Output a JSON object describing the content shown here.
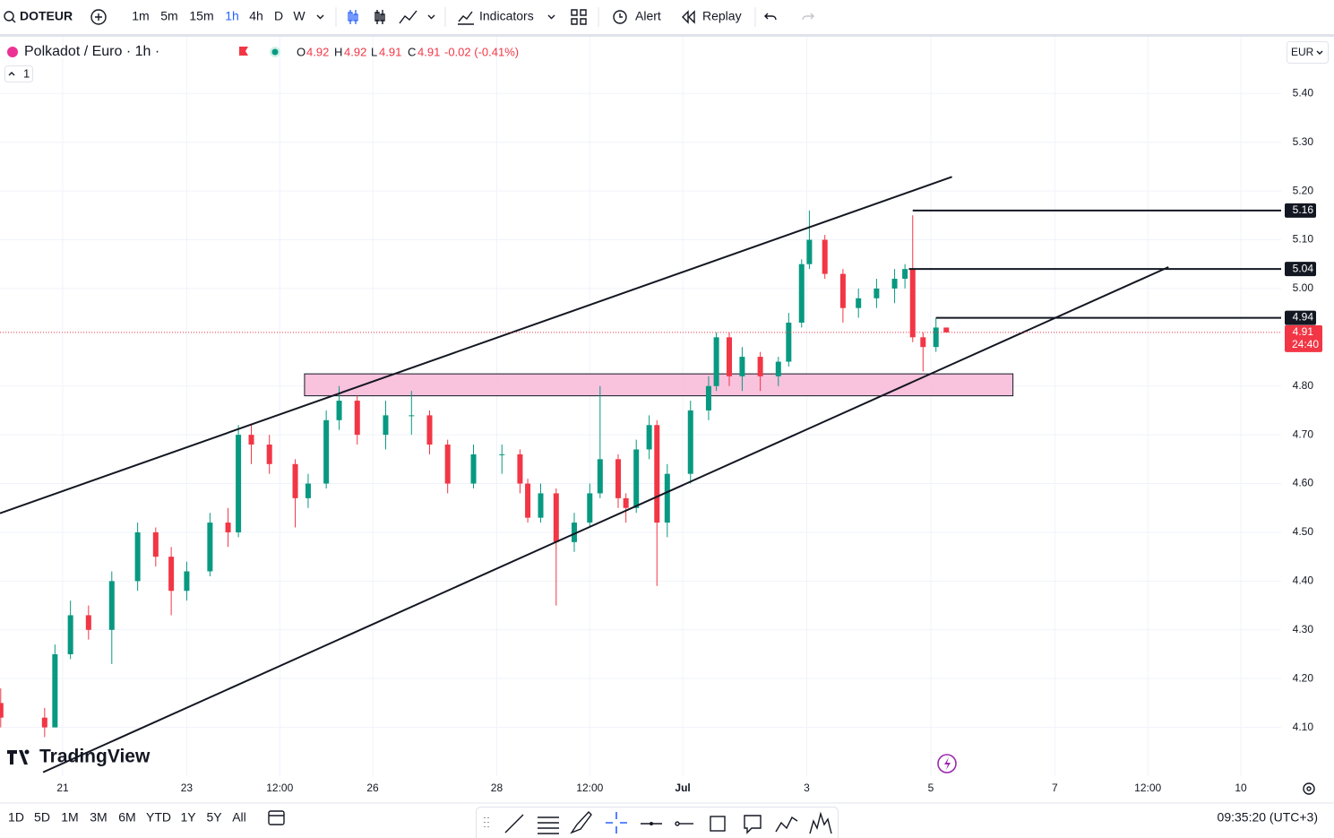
{
  "toolbar": {
    "symbol": "DOTEUR",
    "intervals": [
      "1m",
      "5m",
      "15m",
      "1h",
      "4h",
      "D",
      "W"
    ],
    "indicators": "Indicators",
    "alert": "Alert",
    "replay": "Replay"
  },
  "legend": {
    "title": "Polkadot / Euro · 1h ·",
    "o_label": "O",
    "open": 4.92,
    "h_label": "H",
    "high": 4.92,
    "l_label": "L",
    "low": 4.91,
    "c_label": "C",
    "close": 4.91,
    "change": "-0.02 (-0.41%)",
    "indicator_count": "1",
    "currency": "EUR"
  },
  "chart_data": {
    "type": "candlestick",
    "up_color": "#089981",
    "down_color": "#f23645",
    "grid": true,
    "ylim": [
      4.0,
      5.52
    ],
    "yticks": [
      {
        "value": 4.1,
        "label": "4.10"
      },
      {
        "value": 4.2,
        "label": "4.20"
      },
      {
        "value": 4.3,
        "label": "4.30"
      },
      {
        "value": 4.4,
        "label": "4.40"
      },
      {
        "value": 4.5,
        "label": "4.50"
      },
      {
        "value": 4.6,
        "label": "4.60"
      },
      {
        "value": 4.7,
        "label": "4.70"
      },
      {
        "value": 4.8,
        "label": "4.80"
      },
      {
        "value": 5.0,
        "label": "5.00"
      },
      {
        "value": 5.1,
        "label": "5.10"
      },
      {
        "value": 5.2,
        "label": "5.20"
      },
      {
        "value": 5.3,
        "label": "5.30"
      },
      {
        "value": 5.4,
        "label": "5.40"
      }
    ],
    "xlim": [
      -24.3,
      471
    ],
    "xticks": [
      {
        "value": 0,
        "label": "21"
      },
      {
        "value": 48,
        "label": "23"
      },
      {
        "value": 84,
        "label": "12:00"
      },
      {
        "value": 120,
        "label": "26"
      },
      {
        "value": 168,
        "label": "28"
      },
      {
        "value": 204,
        "label": "12:00"
      },
      {
        "value": 240,
        "label": "Jul"
      },
      {
        "value": 288,
        "label": "3"
      },
      {
        "value": 336,
        "label": "5"
      },
      {
        "value": 384,
        "label": "7"
      },
      {
        "value": 420,
        "label": "12:00"
      },
      {
        "value": 456,
        "label": "10"
      }
    ],
    "x": [
      -24,
      -7,
      -3,
      3,
      10,
      19,
      29,
      36,
      42,
      48,
      57,
      64,
      68,
      73,
      80,
      90,
      95,
      102,
      107,
      114,
      125,
      135,
      142,
      149,
      159,
      170,
      177,
      180,
      185,
      191,
      198,
      204,
      208,
      215,
      218,
      222,
      227,
      230,
      234,
      243,
      250,
      253,
      258,
      263,
      270,
      277,
      281,
      286,
      289,
      295,
      302,
      308,
      315,
      322,
      326,
      329,
      333,
      338,
      342
    ],
    "open": [
      4.15,
      4.12,
      4.1,
      4.25,
      4.33,
      4.3,
      4.4,
      4.5,
      4.45,
      4.38,
      4.42,
      4.52,
      4.5,
      4.7,
      4.68,
      4.64,
      4.57,
      4.6,
      4.73,
      4.77,
      4.7,
      4.74,
      4.74,
      4.68,
      4.6,
      4.66,
      4.66,
      4.6,
      4.53,
      4.58,
      4.48,
      4.52,
      4.58,
      4.65,
      4.57,
      4.55,
      4.67,
      4.72,
      4.52,
      4.62,
      4.75,
      4.8,
      4.9,
      4.82,
      4.86,
      4.82,
      4.85,
      4.93,
      5.05,
      5.1,
      5.03,
      4.96,
      4.98,
      5.0,
      5.02,
      5.04,
      4.9,
      4.88,
      4.92
    ],
    "high": [
      4.18,
      4.14,
      4.27,
      4.36,
      4.35,
      4.42,
      4.52,
      4.51,
      4.47,
      4.44,
      4.54,
      4.55,
      4.72,
      4.72,
      4.7,
      4.65,
      4.62,
      4.75,
      4.8,
      4.78,
      4.77,
      4.79,
      4.75,
      4.69,
      4.68,
      4.68,
      4.67,
      4.61,
      4.6,
      4.59,
      4.54,
      4.6,
      4.8,
      4.66,
      4.58,
      4.69,
      4.74,
      4.73,
      4.64,
      4.77,
      4.82,
      4.91,
      4.91,
      4.88,
      4.87,
      4.86,
      4.95,
      5.06,
      5.16,
      5.11,
      5.04,
      5.0,
      5.02,
      5.04,
      5.05,
      5.15,
      4.91,
      4.94,
      4.92
    ],
    "low": [
      4.1,
      4.08,
      4.1,
      4.24,
      4.28,
      4.23,
      4.38,
      4.43,
      4.33,
      4.36,
      4.41,
      4.47,
      4.49,
      4.64,
      4.62,
      4.51,
      4.55,
      4.59,
      4.71,
      4.68,
      4.67,
      4.7,
      4.66,
      4.58,
      4.59,
      4.62,
      4.58,
      4.52,
      4.52,
      4.35,
      4.46,
      4.51,
      4.57,
      4.55,
      4.52,
      4.54,
      4.65,
      4.39,
      4.49,
      4.6,
      4.73,
      4.79,
      4.8,
      4.79,
      4.79,
      4.8,
      4.84,
      4.92,
      5.04,
      5.02,
      4.93,
      4.94,
      4.96,
      4.97,
      5.0,
      4.89,
      4.83,
      4.87,
      4.91
    ],
    "close": [
      4.12,
      4.1,
      4.25,
      4.33,
      4.3,
      4.4,
      4.5,
      4.45,
      4.38,
      4.42,
      4.52,
      4.5,
      4.7,
      4.68,
      4.64,
      4.57,
      4.6,
      4.73,
      4.77,
      4.7,
      4.74,
      4.74,
      4.68,
      4.6,
      4.66,
      4.66,
      4.6,
      4.53,
      4.58,
      4.48,
      4.52,
      4.58,
      4.65,
      4.57,
      4.55,
      4.67,
      4.72,
      4.52,
      4.62,
      4.75,
      4.8,
      4.9,
      4.82,
      4.86,
      4.82,
      4.85,
      4.93,
      5.05,
      5.1,
      5.03,
      4.96,
      4.98,
      5.0,
      5.02,
      5.04,
      4.9,
      4.88,
      4.92,
      4.91
    ],
    "zone": {
      "x": [
        93.6,
        367.8
      ],
      "y": [
        4.78,
        4.825
      ],
      "color": "#f8bbd9"
    },
    "trendlines": [
      {
        "x": [
          -24.3,
          344.2
        ],
        "y": [
          4.539,
          5.229
        ]
      },
      {
        "x": [
          -7.6,
          428
        ],
        "y": [
          4.008,
          5.044
        ]
      }
    ],
    "levels": [
      {
        "value": 5.16,
        "start": 329
      },
      {
        "value": 5.04,
        "start": 327.5
      },
      {
        "value": 4.94,
        "start": 338
      }
    ],
    "last_price": {
      "value": 4.91,
      "countdown": "24:40",
      "color": "#f23645"
    }
  },
  "bottom_bar": {
    "ranges": [
      "1D",
      "5D",
      "1M",
      "3M",
      "6M",
      "YTD",
      "1Y",
      "5Y",
      "All"
    ],
    "clock": "09:35:20 (UTC+3)"
  },
  "logo": "TradingView"
}
